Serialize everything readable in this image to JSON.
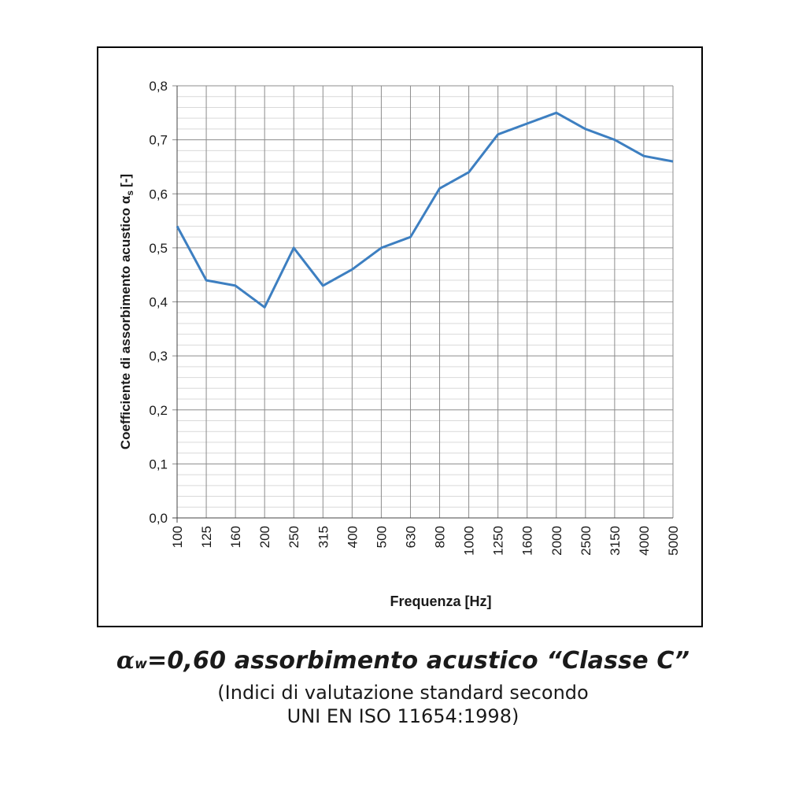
{
  "chart_data": {
    "type": "line",
    "xlabel": "Frequenza [Hz]",
    "ylabel": "Coefficiente di assorbimento acustico",
    "ylabel_symbol": "α",
    "ylabel_subscript": "s",
    "ylabel_unit": "[-]",
    "categories": [
      "100",
      "125",
      "160",
      "200",
      "250",
      "315",
      "400",
      "500",
      "630",
      "800",
      "1000",
      "1250",
      "1600",
      "2000",
      "2500",
      "3150",
      "4000",
      "5000"
    ],
    "values": [
      0.54,
      0.44,
      0.43,
      0.39,
      0.5,
      0.43,
      0.46,
      0.5,
      0.52,
      0.61,
      0.64,
      0.71,
      0.73,
      0.75,
      0.72,
      0.7,
      0.67,
      0.66
    ],
    "ylim": [
      0,
      0.8
    ],
    "yticks": [
      "0,0",
      "0,1",
      "0,2",
      "0,3",
      "0,4",
      "0,5",
      "0,6",
      "0,7",
      "0,8"
    ],
    "grid": true,
    "line_color": "#3d7fc1"
  },
  "caption": {
    "alpha_symbol": "α",
    "alpha_subscript": "w",
    "main_text": "=0,60  assorbimento acustico “Classe C”",
    "line1": "(Indici di valutazione standard secondo",
    "line2": "UNI EN ISO 11654:1998)"
  }
}
